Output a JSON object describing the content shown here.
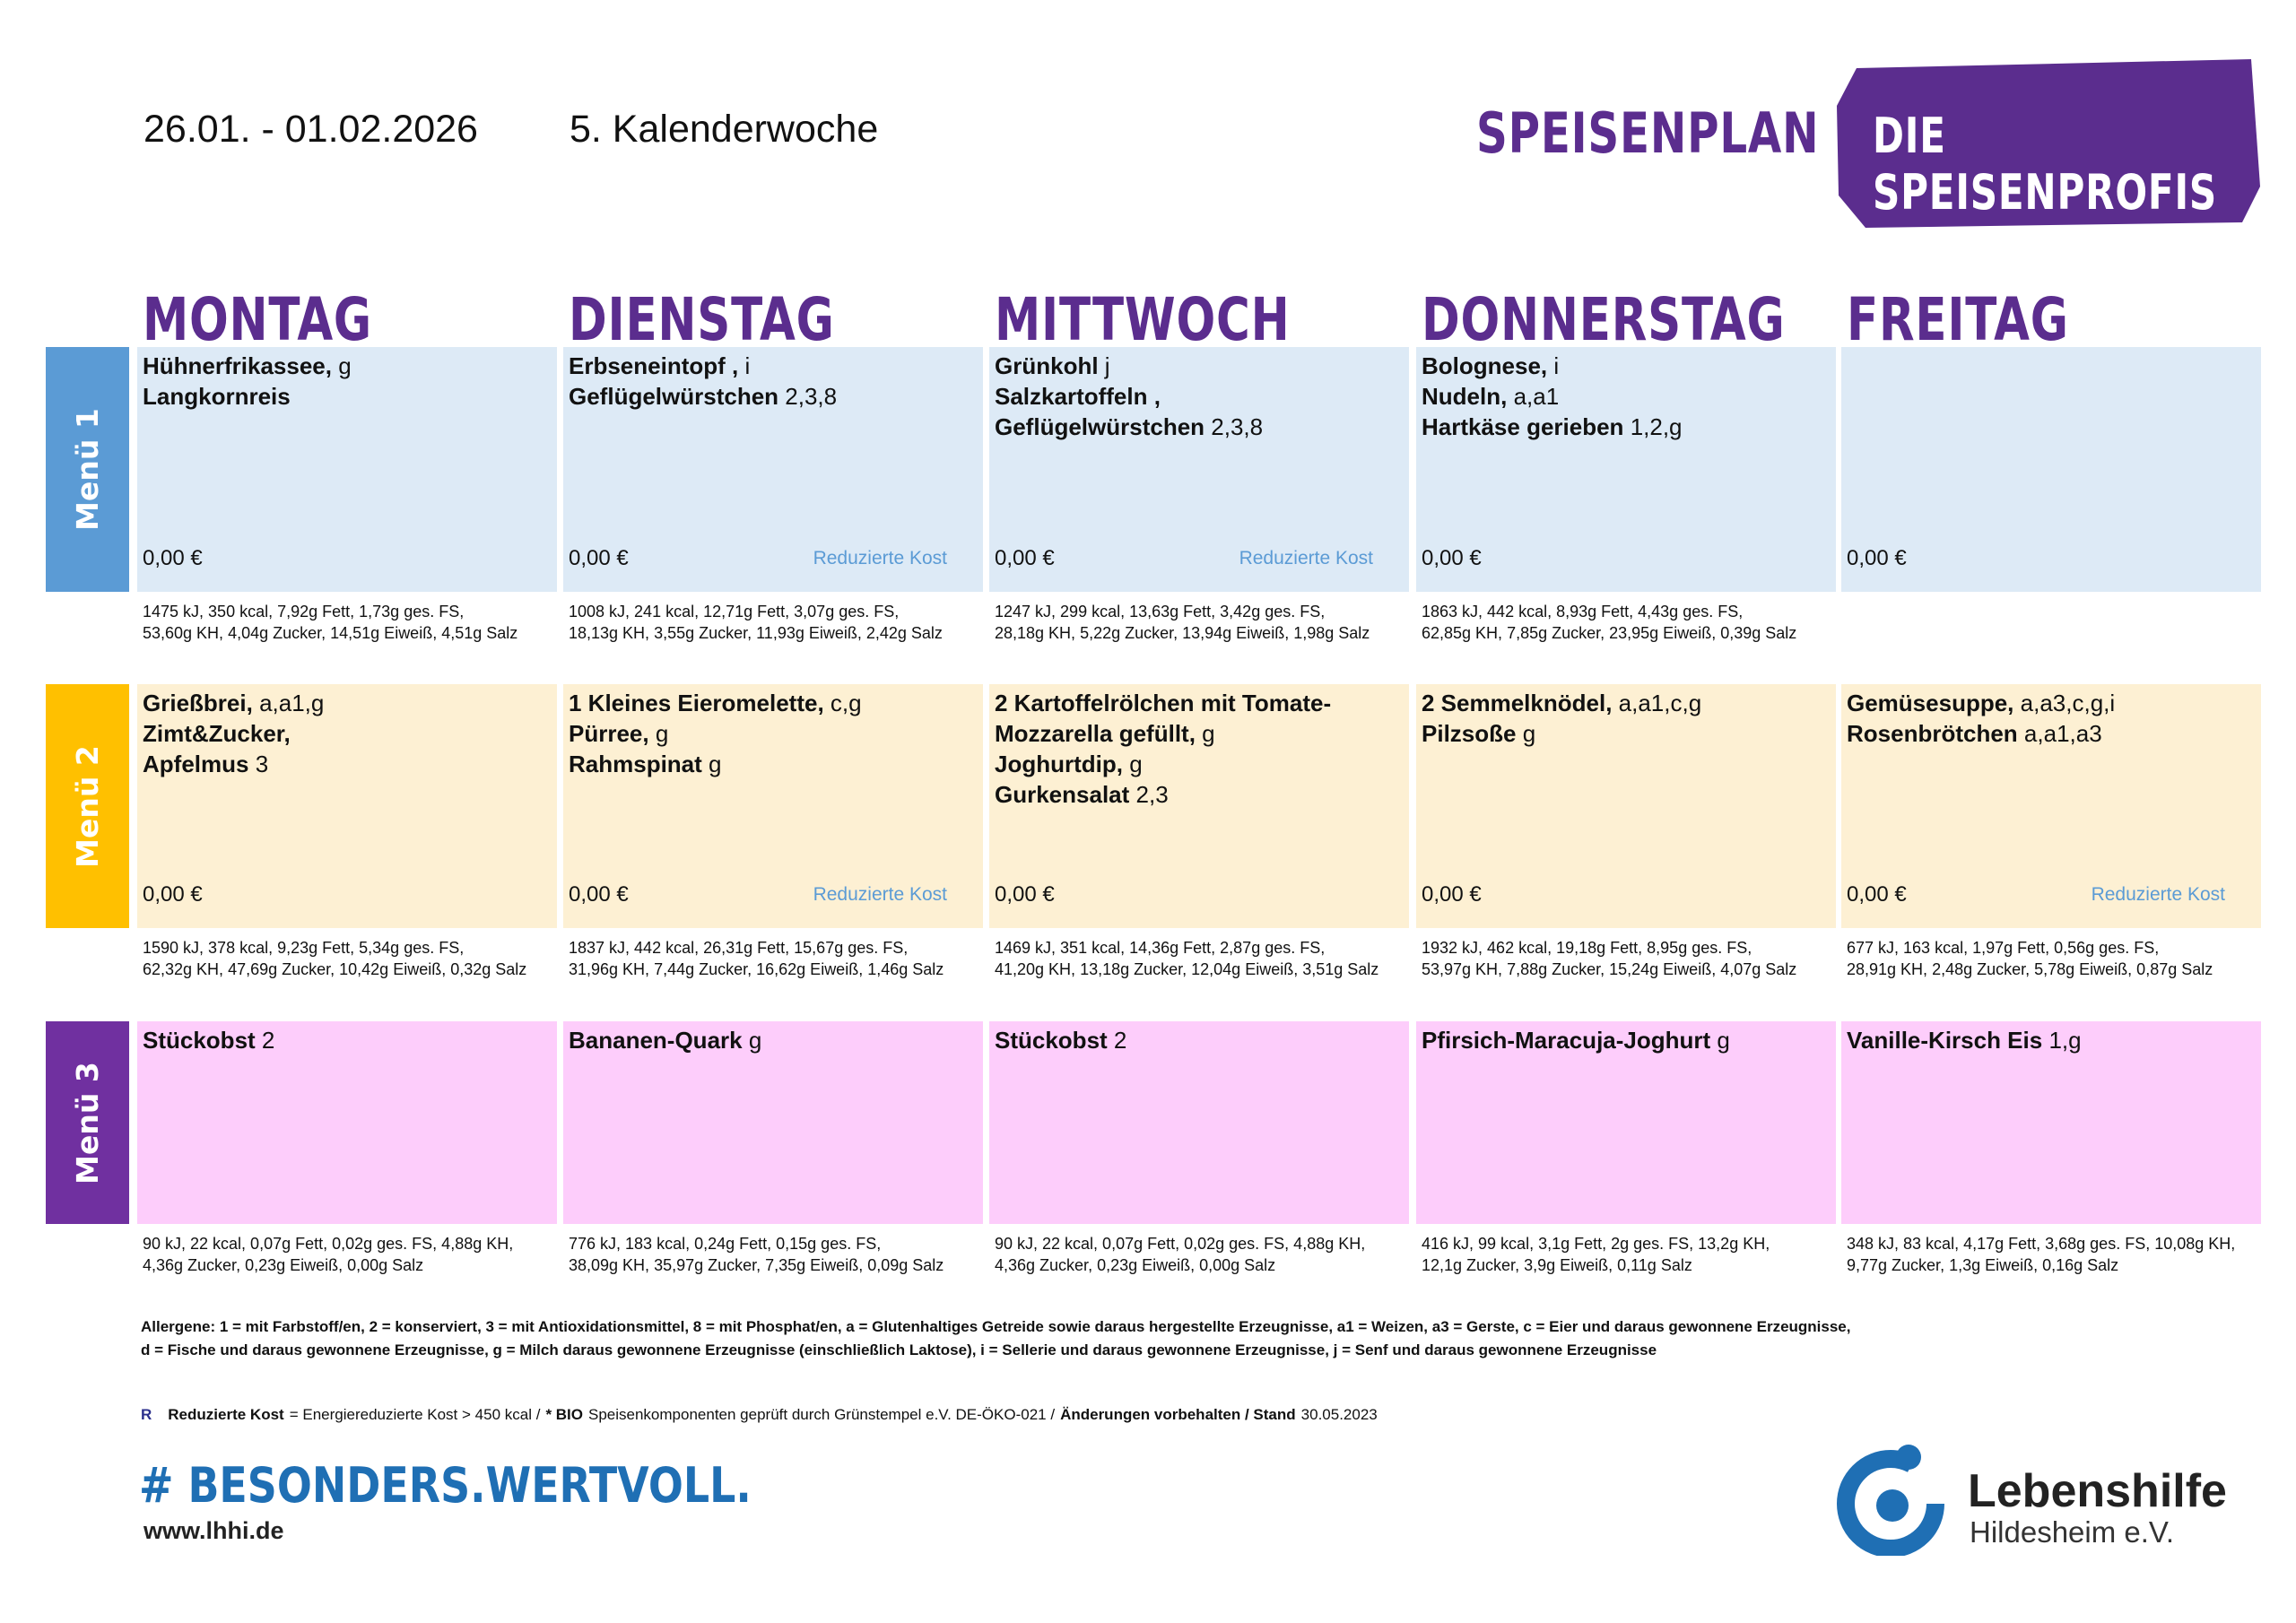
{
  "header": {
    "date_range": "26.01. - 01.02.2026",
    "week": "5. Kalenderwoche",
    "title": "SPEISENPLAN",
    "brand": "DIE SPEISENPROFIS"
  },
  "days": [
    "MONTAG",
    "DIENSTAG",
    "MITTWOCH",
    "DONNERSTAG",
    "FREITAG"
  ],
  "menus": [
    {
      "label": "Menü 1",
      "bar_color": "#5b9bd5",
      "color": "#ddeaf6",
      "cells": [
        {
          "items": [
            {
              "name": "Hühnerfrikassee,",
              "allergens": "g"
            },
            {
              "name": "Langkornreis"
            }
          ],
          "price": "0,00 €",
          "nutrition": [
            "1475 kJ, 350 kcal, 7,92g Fett, 1,73g ges. FS,",
            "53,60g KH, 4,04g Zucker, 14,51g Eiweiß, 4,51g Salz"
          ]
        },
        {
          "items": [
            {
              "name": "Erbseneintopf ,",
              "allergens": "i"
            },
            {
              "name": "Geflügelwürstchen",
              "allergens": "2,3,8"
            }
          ],
          "price": "0,00 €",
          "reduced": "Reduzierte Kost",
          "nutrition": [
            "1008 kJ, 241 kcal, 12,71g Fett, 3,07g ges. FS,",
            "18,13g KH, 3,55g Zucker, 11,93g Eiweiß, 2,42g Salz"
          ]
        },
        {
          "items": [
            {
              "name": "Grünkohl",
              "allergens": "j"
            },
            {
              "name": "Salzkartoffeln ,"
            },
            {
              "name": "Geflügelwürstchen",
              "allergens": "2,3,8"
            }
          ],
          "price": "0,00 €",
          "reduced": "Reduzierte Kost",
          "nutrition": [
            "1247 kJ, 299 kcal, 13,63g Fett, 3,42g ges. FS,",
            "28,18g KH, 5,22g Zucker, 13,94g Eiweiß, 1,98g Salz"
          ]
        },
        {
          "items": [
            {
              "name": "Bolognese,",
              "allergens": "i"
            },
            {
              "name": "Nudeln,",
              "allergens": "a,a1"
            },
            {
              "name": "Hartkäse gerieben",
              "allergens": "1,2,g"
            }
          ],
          "price": "0,00 €",
          "nutrition": [
            "1863 kJ, 442 kcal, 8,93g Fett, 4,43g ges. FS,",
            "62,85g KH, 7,85g Zucker, 23,95g Eiweiß, 0,39g Salz"
          ]
        },
        {
          "items": [],
          "price": "0,00 €",
          "nutrition": []
        }
      ]
    },
    {
      "label": "Menü 2",
      "bar_color": "#ffc000",
      "color": "#fdf0d3",
      "cells": [
        {
          "items": [
            {
              "name": "Grießbrei,",
              "allergens": "a,a1,g"
            },
            {
              "name": "Zimt&Zucker,"
            },
            {
              "name": "Apfelmus",
              "allergens": "3"
            }
          ],
          "price": "0,00 €",
          "nutrition": [
            "1590 kJ, 378 kcal, 9,23g Fett, 5,34g ges. FS,",
            "62,32g KH, 47,69g Zucker, 10,42g Eiweiß, 0,32g Salz"
          ]
        },
        {
          "items": [
            {
              "name": "1 Kleines Eieromelette,",
              "allergens": "c,g"
            },
            {
              "name": "Pürree,",
              "allergens": "g"
            },
            {
              "name": "Rahmspinat",
              "allergens": "g"
            }
          ],
          "price": "0,00 €",
          "reduced": "Reduzierte Kost",
          "nutrition": [
            "1837 kJ, 442 kcal, 26,31g Fett, 15,67g ges. FS,",
            "31,96g KH, 7,44g Zucker, 16,62g Eiweiß, 1,46g Salz"
          ]
        },
        {
          "items": [
            {
              "name": "2 Kartoffelrölchen mit Tomate-"
            },
            {
              "name": "Mozzarella gefüllt,",
              "allergens": "g"
            },
            {
              "name": "Joghurtdip,",
              "allergens": "g"
            },
            {
              "name": "Gurkensalat",
              "allergens": "2,3"
            }
          ],
          "price": "0,00 €",
          "nutrition": [
            "1469 kJ, 351 kcal, 14,36g Fett, 2,87g ges. FS,",
            "41,20g KH, 13,18g Zucker, 12,04g Eiweiß, 3,51g Salz"
          ]
        },
        {
          "items": [
            {
              "name": "2 Semmelknödel,",
              "allergens": "a,a1,c,g"
            },
            {
              "name": "Pilzsoße",
              "allergens": "g"
            }
          ],
          "price": "0,00 €",
          "nutrition": [
            "1932 kJ, 462 kcal, 19,18g Fett, 8,95g ges. FS,",
            "53,97g KH, 7,88g Zucker, 15,24g Eiweiß, 4,07g Salz"
          ]
        },
        {
          "items": [
            {
              "name": "Gemüsesuppe,",
              "allergens": "a,a3,c,g,i"
            },
            {
              "name": "Rosenbrötchen",
              "allergens": "a,a1,a3"
            }
          ],
          "price": "0,00 €",
          "reduced": "Reduzierte Kost",
          "nutrition": [
            "677 kJ, 163 kcal, 1,97g Fett, 0,56g ges. FS,",
            "28,91g KH, 2,48g Zucker, 5,78g Eiweiß, 0,87g Salz"
          ]
        }
      ]
    },
    {
      "label": "Menü 3",
      "bar_color": "#7030a0",
      "color": "#fdcdfb",
      "cells": [
        {
          "items": [
            {
              "name": "Stückobst",
              "allergens": "2"
            }
          ],
          "nutrition": [
            "90 kJ, 22 kcal, 0,07g Fett, 0,02g ges. FS, 4,88g KH,",
            "4,36g Zucker, 0,23g Eiweiß, 0,00g Salz"
          ]
        },
        {
          "items": [
            {
              "name": "Bananen-Quark",
              "allergens": "g"
            }
          ],
          "nutrition": [
            "776 kJ, 183 kcal, 0,24g Fett, 0,15g ges. FS,",
            "38,09g KH, 35,97g Zucker, 7,35g Eiweiß, 0,09g Salz"
          ]
        },
        {
          "items": [
            {
              "name": "Stückobst",
              "allergens": "2"
            }
          ],
          "nutrition": [
            "90 kJ, 22 kcal, 0,07g Fett, 0,02g ges. FS, 4,88g KH,",
            "4,36g Zucker, 0,23g Eiweiß, 0,00g Salz"
          ]
        },
        {
          "items": [
            {
              "name": "Pfirsich-Maracuja-Joghurt",
              "allergens": "g"
            }
          ],
          "nutrition": [
            "416 kJ, 99 kcal, 3,1g Fett, 2g ges. FS, 13,2g KH,",
            "12,1g Zucker, 3,9g Eiweiß, 0,11g Salz"
          ]
        },
        {
          "items": [
            {
              "name": "Vanille-Kirsch Eis",
              "allergens": "1,g"
            }
          ],
          "nutrition": [
            "348 kJ, 83 kcal, 4,17g Fett, 3,68g ges. FS, 10,08g KH,",
            "9,77g Zucker, 1,3g Eiweiß, 0,16g Salz"
          ]
        }
      ]
    }
  ],
  "legend": {
    "allergens": [
      "Allergene: 1 = mit Farbstoff/en, 2 = konserviert, 3 = mit Antioxidationsmittel, 8 = mit Phosphat/en, a = Glutenhaltiges Getreide sowie daraus hergestellte Erzeugnisse, a1 = Weizen, a3 = Gerste, c = Eier und daraus gewonnene Erzeugnisse,",
      "d = Fische und daraus gewonnene Erzeugnisse, g = Milch daraus gewonnene Erzeugnisse (einschließlich Laktose), i = Sellerie und daraus gewonnene Erzeugnisse, j = Senf und daraus gewonnene Erzeugnisse"
    ],
    "note": [
      {
        "text": "R",
        "bold": true
      },
      {
        "text": "Reduzierte Kost",
        "bold": true
      },
      {
        "text": "= Energiereduzierte Kost > 450 kcal /",
        "bold": false
      },
      {
        "text": "* BIO",
        "bold": true
      },
      {
        "text": "Speisenkomponenten geprüft durch Grünstempel e.V. DE-ÖKO-021 /",
        "bold": false
      },
      {
        "text": "Änderungen vorbehalten / Stand",
        "bold": true
      },
      {
        "text": "30.05.2023",
        "bold": false
      }
    ]
  },
  "footer": {
    "slogan": "# BESONDERS.WERTVOLL.",
    "url": "www.lhhi.de",
    "org": "Lebenshilfe",
    "org_sub": "Hildesheim e.V."
  }
}
